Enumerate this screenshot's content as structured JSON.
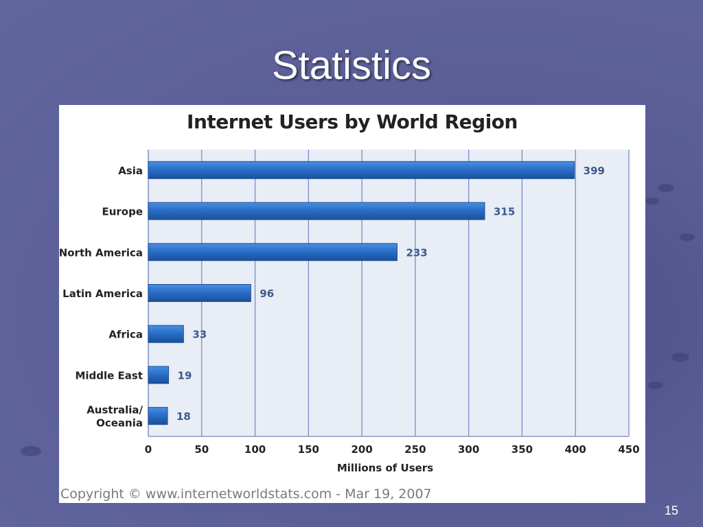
{
  "slide": {
    "title": "Statistics",
    "page_number": "15",
    "copyright": "Copyright © www.internetworldstats.com - Mar 19, 2007"
  },
  "chart_data": {
    "type": "bar",
    "orientation": "horizontal",
    "title": "Internet Users by World Region",
    "xlabel": "Millions of Users",
    "ylabel": "",
    "categories": [
      "Asia",
      "Europe",
      "North America",
      "Latin America",
      "Africa",
      "Middle East",
      "Australia/\nOceania"
    ],
    "values": [
      399,
      315,
      233,
      96,
      33,
      19,
      18
    ],
    "xlim": [
      0,
      450
    ],
    "xticks": [
      "0",
      "50",
      "100",
      "150",
      "200",
      "250",
      "300",
      "350",
      "400",
      "450"
    ],
    "grid": "vertical",
    "legend": "none",
    "colors": {
      "bar": "#2a6fc9",
      "bar_dark": "#1b4f99",
      "value_label": "#3b5a8c",
      "grid": "#6f86c6",
      "plot_bg": "#e8edf6"
    }
  }
}
